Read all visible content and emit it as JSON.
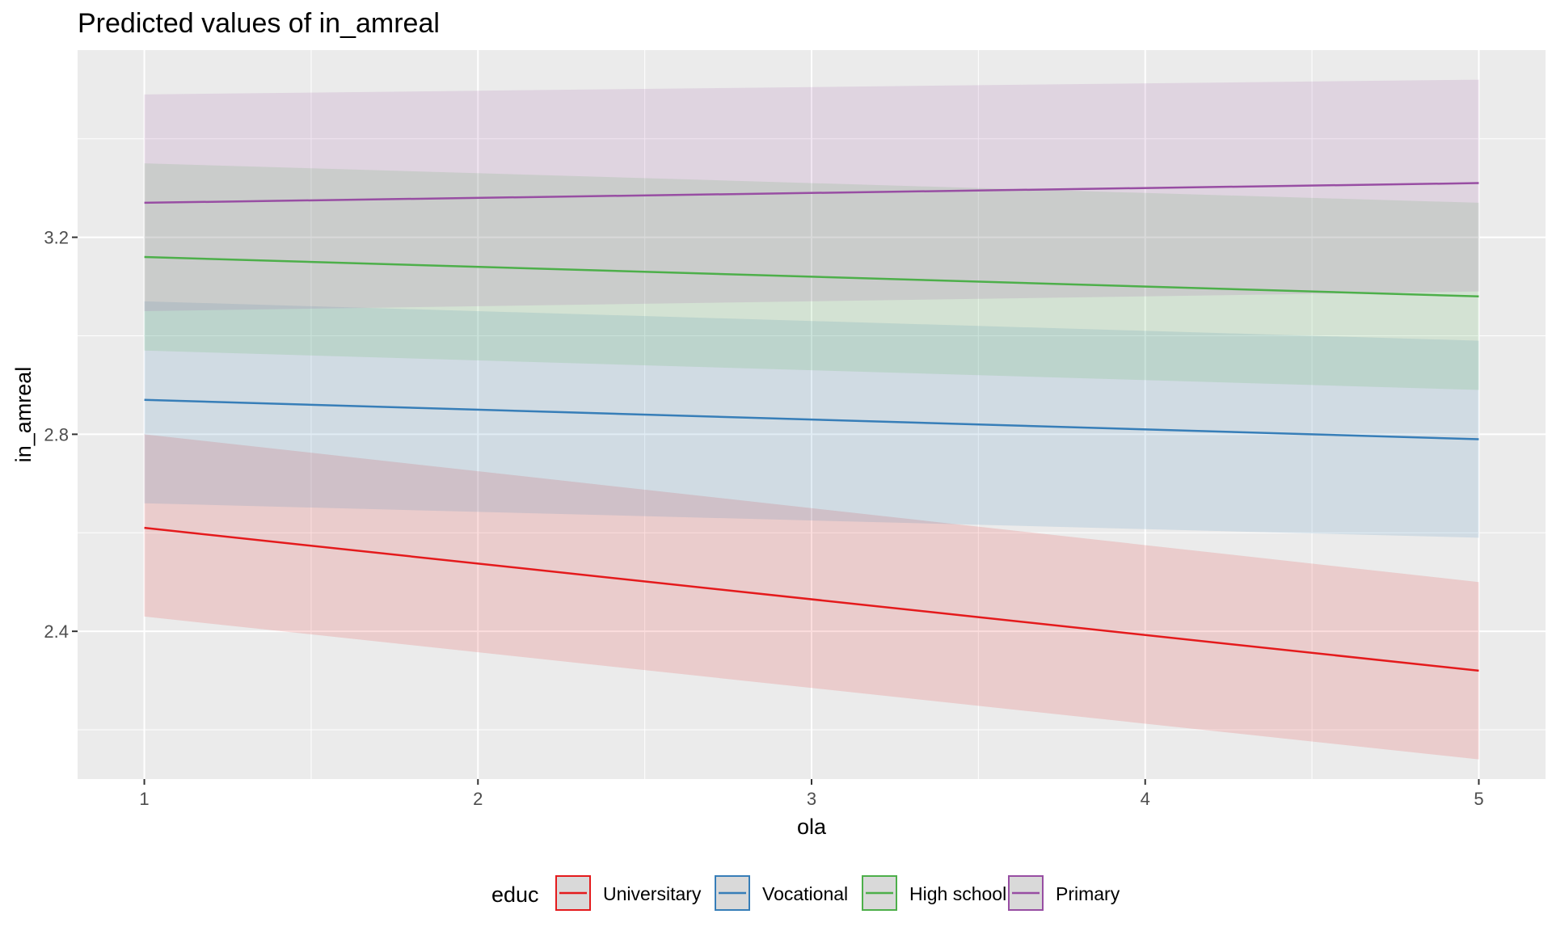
{
  "chart_data": {
    "type": "line",
    "title": "Predicted values of in_amreal",
    "xlabel": "ola",
    "ylabel": "in_amreal",
    "x": [
      1,
      2,
      3,
      4,
      5
    ],
    "xlim": [
      0.8,
      5.2
    ],
    "ylim": [
      2.1,
      3.58
    ],
    "x_ticks": [
      1,
      2,
      3,
      4,
      5
    ],
    "x_tick_labels": [
      "1",
      "2",
      "3",
      "4",
      "5"
    ],
    "x_minor": [
      1.5,
      2.5,
      3.5,
      4.5
    ],
    "y_ticks": [
      2.4,
      2.8,
      3.2
    ],
    "y_tick_labels": [
      "2.4",
      "2.8",
      "3.2"
    ],
    "y_minor": [
      2.2,
      2.6,
      3.0,
      3.4
    ],
    "grid": true,
    "legend": {
      "title": "educ",
      "position": "bottom"
    },
    "series": [
      {
        "name": "Universitary",
        "color": "#E41A1C",
        "start": 2.61,
        "end": 2.32,
        "lower": [
          2.43,
          2.14
        ],
        "upper": [
          2.8,
          2.5
        ]
      },
      {
        "name": "Vocational",
        "color": "#377EB8",
        "start": 2.87,
        "end": 2.79,
        "lower": [
          2.66,
          2.59
        ],
        "upper": [
          3.07,
          2.99
        ]
      },
      {
        "name": "High school",
        "color": "#4DAF4A",
        "start": 3.16,
        "end": 3.08,
        "lower": [
          2.97,
          2.89
        ],
        "upper": [
          3.35,
          3.27
        ]
      },
      {
        "name": "Primary",
        "color": "#984EA3",
        "start": 3.27,
        "end": 3.31,
        "lower": [
          3.05,
          3.09
        ],
        "upper": [
          3.49,
          3.52
        ]
      }
    ]
  }
}
